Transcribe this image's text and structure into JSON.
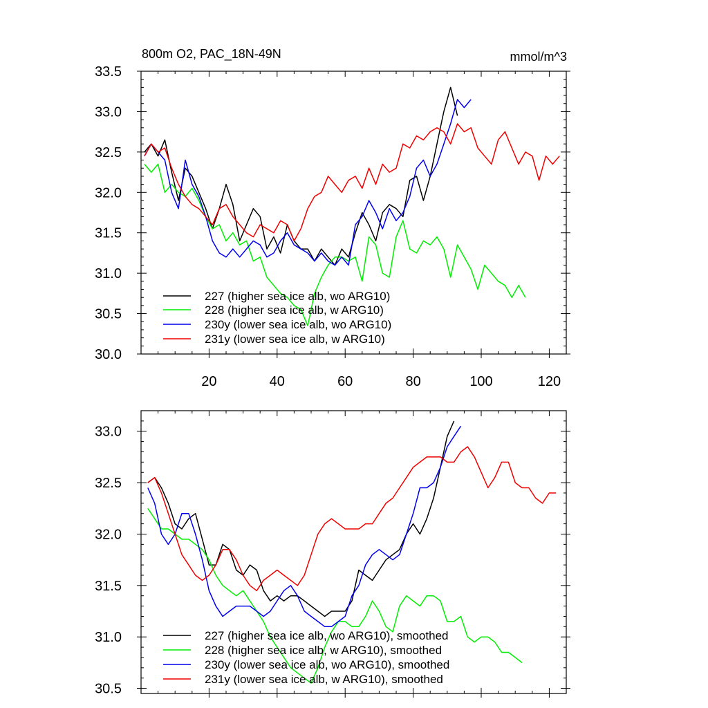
{
  "chart_data": [
    {
      "type": "line",
      "title": "800m O2, PAC_18N-49N",
      "units": "mmol/m^3",
      "xlabel": "",
      "ylabel": "",
      "xlim": [
        0,
        125
      ],
      "ylim": [
        30.0,
        33.5
      ],
      "xticks": [
        20,
        40,
        60,
        80,
        100,
        120
      ],
      "yticks": [
        30.0,
        30.5,
        31.0,
        31.5,
        32.0,
        32.5,
        33.0,
        33.5
      ],
      "ytick_labels": [
        "30.0",
        "30.5",
        "31.0",
        "31.5",
        "32.0",
        "32.5",
        "33.0",
        "33.5"
      ],
      "series": [
        {
          "name": "227 (higher sea ice alb, wo ARG10)",
          "color": "#000000",
          "x": [
            1,
            3,
            5,
            7,
            9,
            11,
            13,
            15,
            17,
            19,
            21,
            23,
            25,
            27,
            29,
            31,
            33,
            35,
            37,
            39,
            41,
            43,
            45,
            47,
            49,
            51,
            53,
            55,
            57,
            59,
            61,
            63,
            65,
            67,
            69,
            71,
            73,
            75,
            77,
            79,
            81,
            83,
            85,
            87,
            89,
            91,
            93
          ],
          "y": [
            32.5,
            32.6,
            32.45,
            32.65,
            32.25,
            31.9,
            32.3,
            32.2,
            32.0,
            31.8,
            31.55,
            31.8,
            32.1,
            31.85,
            31.4,
            31.6,
            31.8,
            31.7,
            31.3,
            31.45,
            31.25,
            31.6,
            31.4,
            31.3,
            31.3,
            31.15,
            31.3,
            31.2,
            31.1,
            31.3,
            31.2,
            31.5,
            31.75,
            31.6,
            31.4,
            31.75,
            31.85,
            31.8,
            31.7,
            32.15,
            32.2,
            31.9,
            32.2,
            32.6,
            33.0,
            33.3,
            32.95
          ]
        },
        {
          "name": "228 (higher sea ice alb, w ARG10)",
          "color": "#00ee00",
          "x": [
            1,
            3,
            5,
            7,
            9,
            11,
            13,
            15,
            17,
            19,
            21,
            23,
            25,
            27,
            29,
            31,
            33,
            35,
            37,
            39,
            41,
            43,
            45,
            47,
            49,
            51,
            53,
            55,
            57,
            59,
            61,
            63,
            65,
            67,
            69,
            71,
            73,
            75,
            77,
            79,
            81,
            83,
            85,
            87,
            89,
            91,
            93,
            95,
            97,
            99,
            101,
            103,
            105,
            107,
            109,
            111,
            113
          ],
          "y": [
            32.35,
            32.25,
            32.35,
            32.0,
            32.1,
            32.0,
            31.95,
            32.05,
            31.9,
            31.7,
            31.55,
            31.6,
            31.4,
            31.5,
            31.35,
            31.4,
            31.15,
            31.2,
            30.95,
            30.85,
            30.75,
            30.7,
            30.6,
            30.55,
            30.35,
            30.75,
            30.95,
            31.1,
            31.2,
            31.2,
            31.15,
            31.2,
            30.9,
            31.45,
            31.35,
            31.0,
            30.95,
            31.45,
            31.65,
            31.3,
            31.25,
            31.4,
            31.35,
            31.45,
            31.3,
            30.95,
            31.35,
            31.2,
            31.05,
            30.8,
            31.1,
            31.0,
            30.9,
            30.85,
            30.7,
            30.85,
            30.7
          ]
        },
        {
          "name": "230y (lower sea ice alb, wo ARG10)",
          "color": "#0000ee",
          "x": [
            1,
            3,
            5,
            7,
            9,
            11,
            13,
            15,
            17,
            19,
            21,
            23,
            25,
            27,
            29,
            31,
            33,
            35,
            37,
            39,
            41,
            43,
            45,
            47,
            49,
            51,
            53,
            55,
            57,
            59,
            61,
            63,
            65,
            67,
            69,
            71,
            73,
            75,
            77,
            79,
            81,
            83,
            85,
            87,
            89,
            91,
            93,
            95,
            97
          ],
          "y": [
            32.45,
            32.6,
            32.5,
            32.4,
            32.0,
            31.8,
            32.4,
            32.1,
            31.95,
            31.7,
            31.4,
            31.25,
            31.2,
            31.3,
            31.2,
            31.3,
            31.4,
            31.35,
            31.2,
            31.25,
            31.4,
            31.5,
            31.35,
            31.3,
            31.25,
            31.15,
            31.25,
            31.15,
            31.1,
            31.2,
            31.1,
            31.6,
            31.7,
            31.9,
            31.75,
            31.55,
            31.8,
            31.65,
            31.75,
            31.95,
            32.3,
            32.4,
            32.2,
            32.35,
            32.6,
            32.85,
            33.15,
            33.05,
            33.15
          ]
        },
        {
          "name": "231y (lower sea ice alb, w ARG10)",
          "color": "#ee0000",
          "x": [
            1,
            3,
            5,
            7,
            9,
            11,
            13,
            15,
            17,
            19,
            21,
            23,
            25,
            27,
            29,
            31,
            33,
            35,
            37,
            39,
            41,
            43,
            45,
            47,
            49,
            51,
            53,
            55,
            57,
            59,
            61,
            63,
            65,
            67,
            69,
            71,
            73,
            75,
            77,
            79,
            81,
            83,
            85,
            87,
            89,
            91,
            93,
            95,
            97,
            99,
            101,
            103,
            105,
            107,
            109,
            111,
            113,
            115,
            117,
            119,
            121,
            123
          ],
          "y": [
            32.45,
            32.6,
            32.5,
            32.55,
            32.3,
            32.1,
            31.95,
            31.85,
            31.8,
            31.7,
            31.6,
            31.8,
            31.85,
            31.7,
            31.6,
            31.5,
            31.45,
            31.6,
            31.55,
            31.5,
            31.65,
            31.6,
            31.4,
            31.55,
            31.8,
            31.95,
            32.0,
            32.2,
            32.1,
            32.0,
            32.15,
            32.2,
            32.05,
            32.3,
            32.1,
            32.35,
            32.25,
            32.3,
            32.6,
            32.55,
            32.7,
            32.65,
            32.75,
            32.8,
            32.75,
            32.6,
            32.85,
            32.75,
            32.8,
            32.55,
            32.45,
            32.35,
            32.65,
            32.75,
            32.55,
            32.35,
            32.5,
            32.45,
            32.15,
            32.45,
            32.35,
            32.45
          ]
        }
      ]
    },
    {
      "type": "line",
      "title": "",
      "xlabel": "",
      "ylabel": "",
      "xlim": [
        0,
        125
      ],
      "ylim": [
        30.45,
        33.2
      ],
      "xticks": [
        20,
        40,
        60,
        80,
        100,
        120
      ],
      "yticks": [
        30.5,
        31.0,
        31.5,
        32.0,
        32.5,
        33.0
      ],
      "ytick_labels": [
        "30.5",
        "31.0",
        "31.5",
        "32.0",
        "32.5",
        "33.0"
      ],
      "series": [
        {
          "name": "227 (higher sea ice alb, wo ARG10), smoothed",
          "color": "#000000",
          "x": [
            2,
            4,
            6,
            8,
            10,
            12,
            14,
            16,
            18,
            20,
            22,
            24,
            26,
            28,
            30,
            32,
            34,
            36,
            38,
            40,
            42,
            44,
            46,
            48,
            50,
            52,
            54,
            56,
            58,
            60,
            62,
            64,
            66,
            68,
            70,
            72,
            74,
            76,
            78,
            80,
            82,
            84,
            86,
            88,
            90,
            92
          ],
          "y": [
            32.5,
            32.55,
            32.45,
            32.3,
            32.1,
            32.05,
            32.15,
            32.2,
            31.95,
            31.7,
            31.7,
            31.9,
            31.85,
            31.65,
            31.6,
            31.7,
            31.65,
            31.45,
            31.35,
            31.4,
            31.35,
            31.4,
            31.4,
            31.35,
            31.3,
            31.25,
            31.2,
            31.25,
            31.25,
            31.25,
            31.35,
            31.65,
            31.6,
            31.55,
            31.65,
            31.75,
            31.8,
            31.85,
            32.0,
            32.1,
            32.0,
            32.15,
            32.35,
            32.65,
            32.95,
            33.1
          ]
        },
        {
          "name": "228 (higher sea ice alb, w ARG10), smoothed",
          "color": "#00ee00",
          "x": [
            2,
            4,
            6,
            8,
            10,
            12,
            14,
            16,
            18,
            20,
            22,
            24,
            26,
            28,
            30,
            32,
            34,
            36,
            38,
            40,
            42,
            44,
            46,
            48,
            50,
            52,
            54,
            56,
            58,
            60,
            62,
            64,
            66,
            68,
            70,
            72,
            74,
            76,
            78,
            80,
            82,
            84,
            86,
            88,
            90,
            92,
            94,
            96,
            98,
            100,
            102,
            104,
            106,
            108,
            110,
            112
          ],
          "y": [
            32.25,
            32.15,
            32.05,
            32.05,
            32.0,
            31.95,
            31.95,
            31.9,
            31.85,
            31.75,
            31.6,
            31.5,
            31.45,
            31.4,
            31.45,
            31.35,
            31.25,
            31.15,
            31.0,
            30.9,
            30.8,
            30.7,
            30.65,
            30.6,
            30.55,
            30.7,
            30.9,
            31.05,
            31.15,
            31.15,
            31.1,
            31.1,
            31.2,
            31.35,
            31.25,
            31.1,
            31.05,
            31.3,
            31.4,
            31.35,
            31.3,
            31.4,
            31.4,
            31.35,
            31.15,
            31.15,
            31.2,
            31.0,
            30.95,
            31.0,
            31.0,
            30.95,
            30.85,
            30.85,
            30.8,
            30.75
          ]
        },
        {
          "name": "230y (lower sea ice alb, wo ARG10), smoothed",
          "color": "#0000ee",
          "x": [
            2,
            4,
            6,
            8,
            10,
            12,
            14,
            16,
            18,
            20,
            22,
            24,
            26,
            28,
            30,
            32,
            34,
            36,
            38,
            40,
            42,
            44,
            46,
            48,
            50,
            52,
            54,
            56,
            58,
            60,
            62,
            64,
            66,
            68,
            70,
            72,
            74,
            76,
            78,
            80,
            82,
            84,
            86,
            88,
            90,
            92,
            94
          ],
          "y": [
            32.45,
            32.3,
            32.0,
            31.9,
            32.0,
            32.2,
            32.2,
            32.0,
            31.75,
            31.45,
            31.3,
            31.2,
            31.25,
            31.3,
            31.3,
            31.3,
            31.25,
            31.2,
            31.25,
            31.35,
            31.45,
            31.5,
            31.4,
            31.25,
            31.2,
            31.15,
            31.1,
            31.1,
            31.15,
            31.2,
            31.4,
            31.5,
            31.7,
            31.8,
            31.85,
            31.8,
            31.75,
            31.8,
            32.0,
            32.2,
            32.45,
            32.45,
            32.5,
            32.65,
            32.85,
            32.95,
            33.05
          ]
        },
        {
          "name": "231y (lower sea ice alb, w ARG10), smoothed",
          "color": "#ee0000",
          "x": [
            2,
            4,
            6,
            8,
            10,
            12,
            14,
            16,
            18,
            20,
            22,
            24,
            26,
            28,
            30,
            32,
            34,
            36,
            38,
            40,
            42,
            44,
            46,
            48,
            50,
            52,
            54,
            56,
            58,
            60,
            62,
            64,
            66,
            68,
            70,
            72,
            74,
            76,
            78,
            80,
            82,
            84,
            86,
            88,
            90,
            92,
            94,
            96,
            98,
            100,
            102,
            104,
            106,
            108,
            110,
            112,
            114,
            116,
            118,
            120,
            122
          ],
          "y": [
            32.5,
            32.55,
            32.4,
            32.2,
            32.0,
            31.8,
            31.7,
            31.6,
            31.55,
            31.6,
            31.7,
            31.85,
            31.85,
            31.75,
            31.6,
            31.5,
            31.45,
            31.55,
            31.6,
            31.65,
            31.6,
            31.55,
            31.5,
            31.6,
            31.8,
            32.0,
            32.1,
            32.15,
            32.1,
            32.05,
            32.05,
            32.05,
            32.1,
            32.1,
            32.2,
            32.3,
            32.35,
            32.45,
            32.55,
            32.65,
            32.7,
            32.75,
            32.75,
            32.75,
            32.7,
            32.7,
            32.8,
            32.85,
            32.75,
            32.6,
            32.45,
            32.55,
            32.7,
            32.7,
            32.5,
            32.45,
            32.45,
            32.35,
            32.3,
            32.4,
            32.4
          ]
        }
      ]
    }
  ]
}
